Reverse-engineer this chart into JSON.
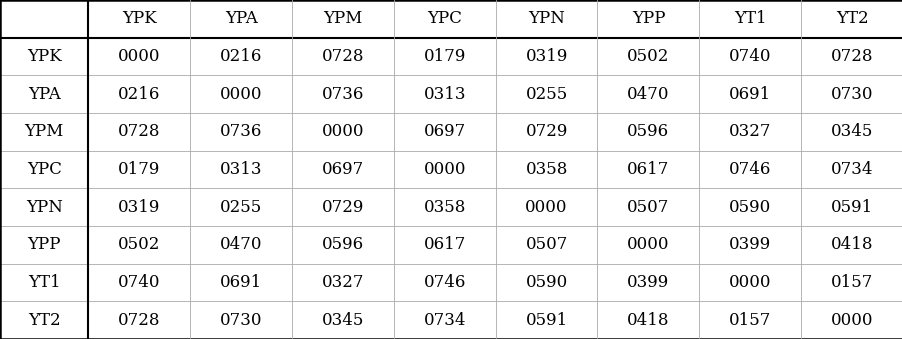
{
  "col_headers": [
    "YPK",
    "YPA",
    "YPM",
    "YPC",
    "YPN",
    "YPP",
    "YT1",
    "YT2"
  ],
  "row_headers": [
    "YPK",
    "YPA",
    "YPM",
    "YPC",
    "YPN",
    "YPP",
    "YT1",
    "YT2"
  ],
  "matrix": [
    [
      "0000",
      "0216",
      "0728",
      "0179",
      "0319",
      "0502",
      "0740",
      "0728"
    ],
    [
      "0216",
      "0000",
      "0736",
      "0313",
      "0255",
      "0470",
      "0691",
      "0730"
    ],
    [
      "0728",
      "0736",
      "0000",
      "0697",
      "0729",
      "0596",
      "0327",
      "0345"
    ],
    [
      "0179",
      "0313",
      "0697",
      "0000",
      "0358",
      "0617",
      "0746",
      "0734"
    ],
    [
      "0319",
      "0255",
      "0729",
      "0358",
      "0000",
      "0507",
      "0590",
      "0591"
    ],
    [
      "0502",
      "0470",
      "0596",
      "0617",
      "0507",
      "0000",
      "0399",
      "0418"
    ],
    [
      "0740",
      "0691",
      "0327",
      "0746",
      "0590",
      "0399",
      "0000",
      "0157"
    ],
    [
      "0728",
      "0730",
      "0345",
      "0734",
      "0591",
      "0418",
      "0157",
      "0000"
    ]
  ],
  "background_color": "#ffffff",
  "edge_color": "#000000",
  "inner_line_color": "#aaaaaa",
  "text_color": "#000000",
  "fontsize": 12,
  "figsize": [
    9.03,
    3.39
  ],
  "dpi": 100
}
